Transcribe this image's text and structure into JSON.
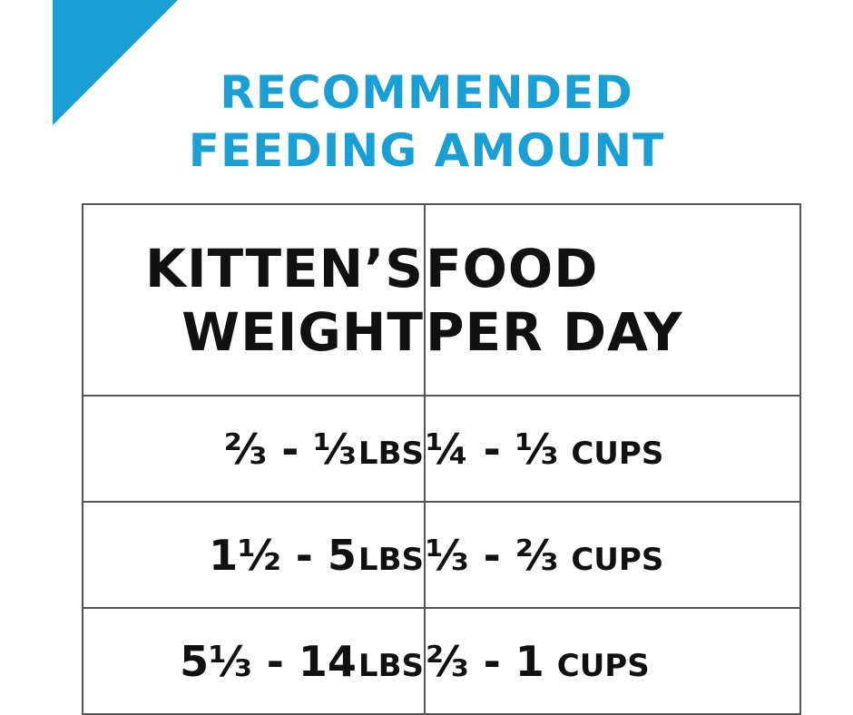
{
  "title": {
    "line1": "RECOMMENDED",
    "line2": "FEEDING AMOUNT"
  },
  "colors": {
    "accent": "#1a9fd4",
    "text": "#111111",
    "border": "#555555"
  },
  "table": {
    "headers": {
      "weight": {
        "line1": "KITTEN’S",
        "line2": "WEIGHT"
      },
      "food": {
        "line1": "FOOD",
        "line2": "PER DAY"
      }
    },
    "rows": [
      {
        "weight_value": "⅔ - ⅓",
        "weight_unit": "LBS",
        "food_value": "¼ - ⅓",
        "food_unit": "CUPS"
      },
      {
        "weight_value": "1½ - 5",
        "weight_unit": "LBS",
        "food_value": "⅓ - ⅔",
        "food_unit": "CUPS"
      },
      {
        "weight_value": "5⅓ - 14",
        "weight_unit": "LBS",
        "food_value": "⅔ - 1",
        "food_unit": "CUPS"
      }
    ]
  }
}
